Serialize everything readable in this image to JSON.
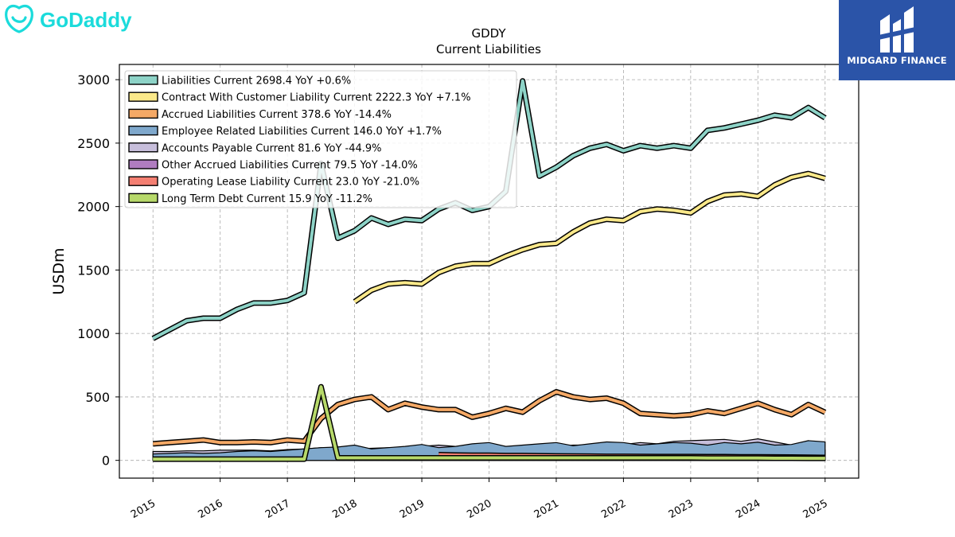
{
  "brand": {
    "logo_text": "GoDaddy",
    "logo_color": "#1bdbdb"
  },
  "badge": {
    "text": "MIDGARD FINANCE",
    "color": "#2b54a8"
  },
  "chart_data": {
    "type": "line",
    "title": "GDDY",
    "subtitle": "Current  Liabilities",
    "ylabel": "USDm",
    "xlabel": "",
    "ylim": [
      -140,
      3120
    ],
    "xlim": [
      2014.5,
      2025.5
    ],
    "yticks": [
      0,
      500,
      1000,
      1500,
      2000,
      2500,
      3000
    ],
    "xticks": [
      2015,
      2016,
      2017,
      2018,
      2019,
      2020,
      2021,
      2022,
      2023,
      2024,
      2025
    ],
    "grid": true,
    "legend_position": "top-left",
    "series": [
      {
        "name": "Other Accrued Liabilities Current",
        "legend": "Other Accrued Liabilities Current  79.5 YoY -14.0%",
        "color": "#b07cc0",
        "fill": true,
        "x": [
          2015.0,
          2015.25,
          2015.5,
          2015.75,
          2016.0,
          2016.25,
          2016.5,
          2016.75,
          2017.0,
          2017.25,
          2017.5,
          2017.75,
          2018.0,
          2018.25,
          2018.5,
          2018.75,
          2019.0,
          2019.25,
          2019.5,
          2019.75,
          2020.0,
          2020.25,
          2020.5,
          2020.75,
          2021.0,
          2021.25,
          2021.5,
          2021.75,
          2022.0,
          2022.25,
          2022.5,
          2022.75,
          2023.0,
          2023.25,
          2023.5,
          2023.75,
          2024.0,
          2024.25,
          2024.5,
          2024.75,
          2025.0
        ],
        "y": [
          40,
          40,
          40,
          40,
          40,
          40,
          40,
          40,
          40,
          45,
          55,
          50,
          50,
          50,
          50,
          50,
          50,
          50,
          50,
          50,
          55,
          55,
          60,
          60,
          65,
          70,
          75,
          80,
          80,
          85,
          90,
          90,
          90,
          90,
          90,
          92,
          95,
          95,
          92,
          90,
          80
        ]
      },
      {
        "name": "Accounts Payable Current",
        "legend": "Accounts Payable Current  81.6 YoY -44.9%",
        "color": "#c7bedb",
        "fill": true,
        "x": [
          2015.0,
          2015.25,
          2015.5,
          2015.75,
          2016.0,
          2016.25,
          2016.5,
          2016.75,
          2017.0,
          2017.25,
          2017.5,
          2017.75,
          2018.0,
          2018.25,
          2018.5,
          2018.75,
          2019.0,
          2019.25,
          2019.5,
          2019.75,
          2020.0,
          2020.25,
          2020.5,
          2020.75,
          2021.0,
          2021.25,
          2021.5,
          2021.75,
          2022.0,
          2022.25,
          2022.5,
          2022.75,
          2023.0,
          2023.25,
          2023.5,
          2023.75,
          2024.0,
          2024.25,
          2024.5,
          2024.75,
          2025.0
        ],
        "y": [
          70,
          70,
          75,
          75,
          80,
          80,
          80,
          75,
          85,
          90,
          100,
          90,
          90,
          95,
          100,
          100,
          110,
          120,
          110,
          110,
          100,
          105,
          110,
          110,
          110,
          120,
          120,
          120,
          125,
          140,
          130,
          150,
          155,
          160,
          165,
          150,
          170,
          145,
          120,
          125,
          82
        ]
      },
      {
        "name": "Employee Related Liabilities Current",
        "legend": "Employee Related Liabilities Current  146.0 YoY +1.7%",
        "color": "#7fa8cc",
        "fill": true,
        "x": [
          2015.0,
          2015.25,
          2015.5,
          2015.75,
          2016.0,
          2016.25,
          2016.5,
          2016.75,
          2017.0,
          2017.25,
          2017.5,
          2017.75,
          2018.0,
          2018.25,
          2018.5,
          2018.75,
          2019.0,
          2019.25,
          2019.5,
          2019.75,
          2020.0,
          2020.25,
          2020.5,
          2020.75,
          2021.0,
          2021.25,
          2021.5,
          2021.75,
          2022.0,
          2022.25,
          2022.5,
          2022.75,
          2023.0,
          2023.25,
          2023.5,
          2023.75,
          2024.0,
          2024.25,
          2024.5,
          2024.75,
          2025.0
        ],
        "y": [
          50,
          55,
          60,
          55,
          60,
          70,
          75,
          70,
          80,
          90,
          100,
          105,
          120,
          90,
          100,
          110,
          125,
          100,
          110,
          130,
          140,
          110,
          120,
          130,
          140,
          115,
          130,
          145,
          140,
          120,
          130,
          140,
          135,
          120,
          140,
          130,
          143,
          120,
          125,
          155,
          146
        ]
      },
      {
        "name": "Accrued Liabilities Current",
        "legend": "Accrued Liabilities Current  378.6 YoY -14.4%",
        "color": "#f5a966",
        "fill": false,
        "x": [
          2015.0,
          2015.25,
          2015.5,
          2015.75,
          2016.0,
          2016.25,
          2016.5,
          2016.75,
          2017.0,
          2017.25,
          2017.5,
          2017.75,
          2018.0,
          2018.25,
          2018.5,
          2018.75,
          2019.0,
          2019.25,
          2019.5,
          2019.75,
          2020.0,
          2020.25,
          2020.5,
          2020.75,
          2021.0,
          2021.25,
          2021.5,
          2021.75,
          2022.0,
          2022.25,
          2022.5,
          2022.75,
          2023.0,
          2023.25,
          2023.5,
          2023.75,
          2024.0,
          2024.25,
          2024.5,
          2024.75,
          2025.0
        ],
        "y": [
          130,
          140,
          150,
          160,
          140,
          140,
          145,
          140,
          160,
          150,
          330,
          440,
          480,
          500,
          400,
          450,
          420,
          400,
          400,
          340,
          370,
          410,
          380,
          470,
          540,
          500,
          480,
          490,
          450,
          370,
          360,
          350,
          360,
          390,
          370,
          410,
          450,
          400,
          360,
          440,
          378.6
        ]
      },
      {
        "name": "Operating Lease Liability Current",
        "legend": "Operating Lease Liability Current  23.0 YoY -21.0%",
        "color": "#f47f72",
        "fill": false,
        "x": [
          2019.25,
          2019.5,
          2019.75,
          2020.0,
          2020.25,
          2020.5,
          2020.75,
          2021.0,
          2021.25,
          2021.5,
          2021.75,
          2022.0,
          2022.25,
          2022.5,
          2022.75,
          2023.0,
          2023.25,
          2023.5,
          2023.75,
          2024.0,
          2024.25,
          2024.5,
          2024.75,
          2025.0
        ],
        "y": [
          45,
          42,
          40,
          40,
          38,
          38,
          36,
          35,
          34,
          33,
          32,
          32,
          31,
          30,
          30,
          30,
          29,
          29,
          28,
          28,
          27,
          26,
          25,
          23
        ]
      },
      {
        "name": "Long Term Debt Current",
        "legend": "Long Term Debt Current  15.9 YoY -11.2%",
        "color": "#b7d96a",
        "fill": false,
        "x": [
          2015.0,
          2015.25,
          2015.5,
          2015.75,
          2016.0,
          2016.25,
          2016.5,
          2016.75,
          2017.0,
          2017.25,
          2017.5,
          2017.75,
          2018.0,
          2018.25,
          2018.5,
          2018.75,
          2019.0,
          2019.25,
          2019.5,
          2019.75,
          2020.0,
          2020.25,
          2020.5,
          2020.75,
          2021.0,
          2021.25,
          2021.5,
          2021.75,
          2022.0,
          2022.25,
          2022.5,
          2022.75,
          2023.0,
          2023.25,
          2023.5,
          2023.75,
          2024.0,
          2024.25,
          2024.5,
          2024.75,
          2025.0
        ],
        "y": [
          10,
          10,
          10,
          10,
          10,
          10,
          10,
          10,
          10,
          10,
          580,
          20,
          20,
          20,
          20,
          20,
          20,
          20,
          20,
          20,
          20,
          20,
          20,
          20,
          20,
          20,
          20,
          20,
          20,
          20,
          20,
          20,
          20,
          18,
          18,
          18,
          18,
          17,
          17,
          16,
          15.9
        ]
      },
      {
        "name": "Contract With Customer Liability Current",
        "legend": "Contract With Customer Liability Current  2222.3 YoY +7.1%",
        "color": "#fbe98a",
        "fill": false,
        "x": [
          2018.0,
          2018.25,
          2018.5,
          2018.75,
          2019.0,
          2019.25,
          2019.5,
          2019.75,
          2020.0,
          2020.25,
          2020.5,
          2020.75,
          2021.0,
          2021.25,
          2021.5,
          2021.75,
          2022.0,
          2022.25,
          2022.5,
          2022.75,
          2023.0,
          2023.25,
          2023.5,
          2023.75,
          2024.0,
          2024.25,
          2024.5,
          2024.75,
          2025.0
        ],
        "y": [
          1250,
          1340,
          1390,
          1400,
          1390,
          1480,
          1530,
          1550,
          1550,
          1610,
          1660,
          1700,
          1710,
          1800,
          1870,
          1900,
          1890,
          1960,
          1980,
          1970,
          1950,
          2040,
          2090,
          2100,
          2080,
          2170,
          2230,
          2260,
          2222.3
        ]
      },
      {
        "name": "Liabilities Current",
        "legend": "Liabilities Current  2698.4 YoY +0.6%",
        "color": "#8dd3c7",
        "fill": false,
        "x": [
          2015.0,
          2015.25,
          2015.5,
          2015.75,
          2016.0,
          2016.25,
          2016.5,
          2016.75,
          2017.0,
          2017.25,
          2017.5,
          2017.75,
          2018.0,
          2018.25,
          2018.5,
          2018.75,
          2019.0,
          2019.25,
          2019.5,
          2019.75,
          2020.0,
          2020.25,
          2020.5,
          2020.75,
          2021.0,
          2021.25,
          2021.5,
          2021.75,
          2022.0,
          2022.25,
          2022.5,
          2022.75,
          2023.0,
          2023.25,
          2023.5,
          2023.75,
          2024.0,
          2024.25,
          2024.5,
          2024.75,
          2025.0
        ],
        "y": [
          960,
          1030,
          1100,
          1120,
          1120,
          1190,
          1240,
          1240,
          1260,
          1320,
          2340,
          1750,
          1810,
          1910,
          1860,
          1900,
          1890,
          1980,
          2030,
          1970,
          2000,
          2120,
          2990,
          2240,
          2310,
          2400,
          2460,
          2490,
          2440,
          2480,
          2460,
          2480,
          2460,
          2600,
          2620,
          2650,
          2680,
          2720,
          2700,
          2780,
          2698.4
        ]
      }
    ],
    "legend_order": [
      "Liabilities Current",
      "Contract With Customer Liability Current",
      "Accrued Liabilities Current",
      "Employee Related Liabilities Current",
      "Accounts Payable Current",
      "Other Accrued Liabilities Current",
      "Operating Lease Liability Current",
      "Long Term Debt Current"
    ]
  }
}
